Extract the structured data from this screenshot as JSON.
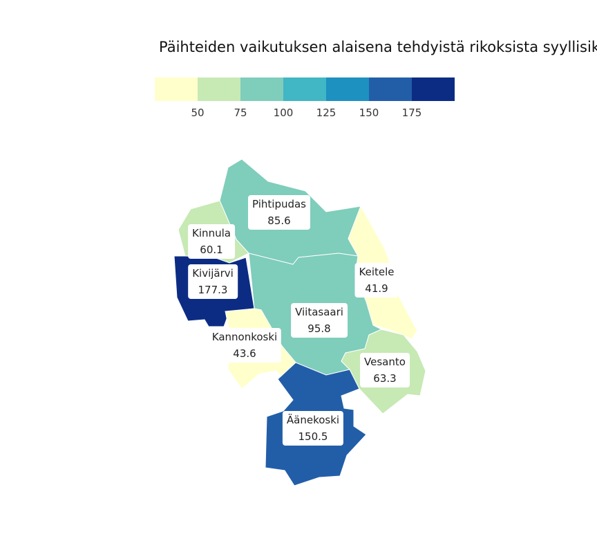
{
  "title": "Päihteiden vaikutuksen alaisena tehdyistä rikoksista syyllisiksi",
  "legend": {
    "colors": [
      "#ffffcc",
      "#c7e9b4",
      "#7fcdbb",
      "#41b6c4",
      "#1d91c0",
      "#225ea8",
      "#0c2c84"
    ],
    "ticks": [
      "50",
      "75",
      "100",
      "125",
      "150",
      "175"
    ]
  },
  "chart_data": {
    "type": "choropleth",
    "title": "Päihteiden vaikutuksen alaisena tehdyistä rikoksista syyllisiksi",
    "breaks": [
      50,
      75,
      100,
      125,
      150,
      175
    ],
    "regions": [
      {
        "name": "Pihtipudas",
        "value": "85.6",
        "color": "#7fcdbb"
      },
      {
        "name": "Kinnula",
        "value": "60.1",
        "color": "#c7e9b4"
      },
      {
        "name": "Kivijärvi",
        "value": "177.3",
        "color": "#0c2c84"
      },
      {
        "name": "Keitele",
        "value": "41.9",
        "color": "#ffffcc"
      },
      {
        "name": "Viitasaari",
        "value": "95.8",
        "color": "#7fcdbb"
      },
      {
        "name": "Kannonkoski",
        "value": "43.6",
        "color": "#ffffcc"
      },
      {
        "name": "Vesanto",
        "value": "63.3",
        "color": "#c7e9b4"
      },
      {
        "name": "Äänekoski",
        "value": "150.5",
        "color": "#225ea8"
      }
    ]
  }
}
